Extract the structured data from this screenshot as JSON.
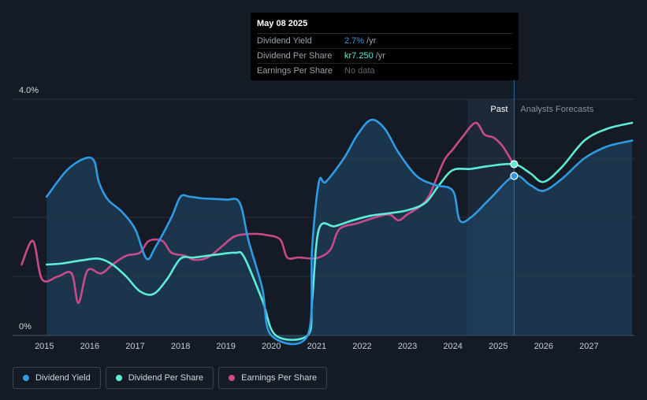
{
  "tooltip": {
    "date": "May 08 2025",
    "rows": [
      {
        "label": "Dividend Yield",
        "value": "2.7%",
        "unit": "/yr"
      },
      {
        "label": "Dividend Per Share",
        "value": "kr7.250",
        "unit": "/yr"
      },
      {
        "label": "Earnings Per Share",
        "value": "No data"
      }
    ]
  },
  "legend": [
    {
      "label": "Dividend Yield",
      "color": "#2f9be4"
    },
    {
      "label": "Dividend Per Share",
      "color": "#5eecd9"
    },
    {
      "label": "Earnings Per Share",
      "color": "#c94a8a"
    }
  ],
  "chart_data": {
    "type": "line",
    "y_tick_labels": [
      "4.0%",
      "0%"
    ],
    "x_tick_labels": [
      "2015",
      "2016",
      "2017",
      "2018",
      "2019",
      "2020",
      "2021",
      "2022",
      "2023",
      "2024",
      "2025",
      "2026",
      "2027"
    ],
    "past_label": "Past",
    "forecast_label": "Analysts Forecasts",
    "highlight_date": 2025.35,
    "xlim": [
      2014.3,
      2028.0
    ],
    "ylim": [
      0,
      4.0
    ],
    "series": [
      {
        "name": "Dividend Yield",
        "color": "#2f9be4",
        "unit": "%",
        "points": [
          [
            2015.05,
            2.35
          ],
          [
            2015.5,
            2.8
          ],
          [
            2015.9,
            3.0
          ],
          [
            2016.1,
            2.95
          ],
          [
            2016.2,
            2.6
          ],
          [
            2016.4,
            2.3
          ],
          [
            2016.7,
            2.1
          ],
          [
            2017.0,
            1.8
          ],
          [
            2017.25,
            1.3
          ],
          [
            2017.45,
            1.5
          ],
          [
            2017.8,
            2.0
          ],
          [
            2018.0,
            2.35
          ],
          [
            2018.2,
            2.35
          ],
          [
            2018.5,
            2.32
          ],
          [
            2019.0,
            2.3
          ],
          [
            2019.3,
            2.25
          ],
          [
            2019.5,
            1.6
          ],
          [
            2019.8,
            0.8
          ],
          [
            2020.0,
            0.0
          ],
          [
            2020.8,
            0.0
          ],
          [
            2020.9,
            1.5
          ],
          [
            2021.05,
            2.6
          ],
          [
            2021.2,
            2.6
          ],
          [
            2021.6,
            3.0
          ],
          [
            2021.9,
            3.4
          ],
          [
            2022.2,
            3.65
          ],
          [
            2022.5,
            3.5
          ],
          [
            2022.8,
            3.1
          ],
          [
            2023.2,
            2.7
          ],
          [
            2023.6,
            2.55
          ],
          [
            2024.0,
            2.45
          ],
          [
            2024.15,
            1.95
          ],
          [
            2024.4,
            2.0
          ],
          [
            2024.8,
            2.3
          ],
          [
            2025.35,
            2.7
          ],
          [
            2025.7,
            2.55
          ],
          [
            2026.0,
            2.45
          ],
          [
            2026.4,
            2.65
          ],
          [
            2026.9,
            3.0
          ],
          [
            2027.4,
            3.2
          ],
          [
            2027.95,
            3.3
          ]
        ]
      },
      {
        "name": "Dividend Per Share",
        "color": "#5eecd9",
        "unit": "relative",
        "points": [
          [
            2015.05,
            1.2
          ],
          [
            2015.4,
            1.22
          ],
          [
            2015.8,
            1.27
          ],
          [
            2016.2,
            1.3
          ],
          [
            2016.5,
            1.2
          ],
          [
            2016.8,
            1.0
          ],
          [
            2017.1,
            0.75
          ],
          [
            2017.4,
            0.7
          ],
          [
            2017.7,
            0.95
          ],
          [
            2018.0,
            1.3
          ],
          [
            2018.3,
            1.32
          ],
          [
            2018.8,
            1.37
          ],
          [
            2019.2,
            1.4
          ],
          [
            2019.4,
            1.33
          ],
          [
            2019.8,
            0.6
          ],
          [
            2020.1,
            0.0
          ],
          [
            2020.8,
            0.0
          ],
          [
            2020.9,
            0.6
          ],
          [
            2021.05,
            1.8
          ],
          [
            2021.4,
            1.85
          ],
          [
            2021.8,
            1.95
          ],
          [
            2022.2,
            2.03
          ],
          [
            2022.6,
            2.07
          ],
          [
            2023.0,
            2.12
          ],
          [
            2023.4,
            2.25
          ],
          [
            2023.7,
            2.55
          ],
          [
            2024.0,
            2.8
          ],
          [
            2024.4,
            2.82
          ],
          [
            2024.8,
            2.87
          ],
          [
            2025.35,
            2.9
          ],
          [
            2025.7,
            2.75
          ],
          [
            2026.0,
            2.6
          ],
          [
            2026.4,
            2.85
          ],
          [
            2026.9,
            3.3
          ],
          [
            2027.4,
            3.5
          ],
          [
            2027.95,
            3.6
          ]
        ]
      },
      {
        "name": "Earnings Per Share",
        "color": "#c94a8a",
        "unit": "relative",
        "points": [
          [
            2014.5,
            1.2
          ],
          [
            2014.75,
            1.6
          ],
          [
            2014.95,
            0.95
          ],
          [
            2015.3,
            1.0
          ],
          [
            2015.6,
            1.05
          ],
          [
            2015.75,
            0.55
          ],
          [
            2015.95,
            1.1
          ],
          [
            2016.25,
            1.05
          ],
          [
            2016.5,
            1.2
          ],
          [
            2016.8,
            1.35
          ],
          [
            2017.1,
            1.4
          ],
          [
            2017.3,
            1.6
          ],
          [
            2017.6,
            1.6
          ],
          [
            2017.8,
            1.4
          ],
          [
            2018.1,
            1.35
          ],
          [
            2018.3,
            1.28
          ],
          [
            2018.6,
            1.32
          ],
          [
            2018.9,
            1.5
          ],
          [
            2019.2,
            1.68
          ],
          [
            2019.6,
            1.72
          ],
          [
            2019.9,
            1.7
          ],
          [
            2020.2,
            1.62
          ],
          [
            2020.35,
            1.32
          ],
          [
            2020.6,
            1.32
          ],
          [
            2021.0,
            1.31
          ],
          [
            2021.3,
            1.45
          ],
          [
            2021.5,
            1.8
          ],
          [
            2021.9,
            1.9
          ],
          [
            2022.3,
            2.0
          ],
          [
            2022.6,
            2.05
          ],
          [
            2022.8,
            1.95
          ],
          [
            2023.0,
            2.05
          ],
          [
            2023.3,
            2.2
          ],
          [
            2023.5,
            2.4
          ],
          [
            2023.8,
            2.95
          ],
          [
            2024.0,
            3.15
          ],
          [
            2024.2,
            3.35
          ],
          [
            2024.5,
            3.6
          ],
          [
            2024.7,
            3.4
          ],
          [
            2024.9,
            3.35
          ],
          [
            2025.1,
            3.2
          ],
          [
            2025.3,
            2.95
          ]
        ]
      }
    ],
    "highlight_markers": [
      {
        "series": "Dividend Yield",
        "x": 2025.35,
        "y": 2.7
      },
      {
        "series": "Dividend Per Share",
        "x": 2025.35,
        "y": 2.9
      }
    ]
  }
}
